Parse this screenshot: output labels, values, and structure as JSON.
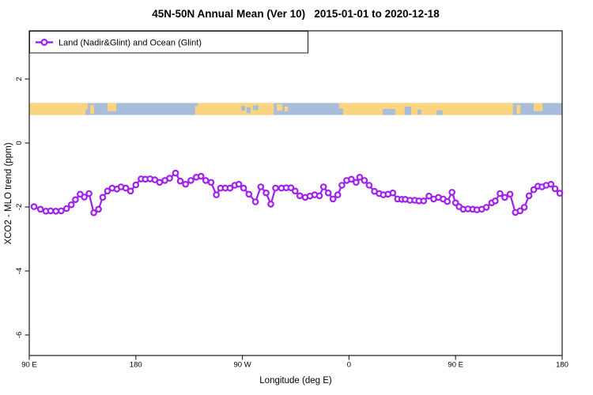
{
  "chart_data": {
    "type": "line",
    "title": "45N-50N Annual Mean (Ver 10)   2015-01-01 to 2020-12-18",
    "xlabel": "Longitude (deg E)",
    "ylabel": "XCO2 - MLO trend (ppm)",
    "xlim": [
      90,
      540
    ],
    "ylim": [
      -6.6,
      3.5
    ],
    "grid": false,
    "background": "#FFFFFF",
    "x_ticks": [
      {
        "lon": 90,
        "label": "90 E"
      },
      {
        "lon": 180,
        "label": "180"
      },
      {
        "lon": 270,
        "label": "90 W"
      },
      {
        "lon": 360,
        "label": "0"
      },
      {
        "lon": 450,
        "label": "90 E"
      },
      {
        "lon": 540,
        "label": "180"
      }
    ],
    "y_ticks": [
      {
        "v": 2,
        "label": "2"
      },
      {
        "v": 0,
        "label": "0"
      },
      {
        "v": -2,
        "label": "-2"
      },
      {
        "v": -4,
        "label": "-4"
      },
      {
        "v": -6,
        "label": "-6"
      }
    ],
    "legend": {
      "label": "Land (Nadir&Glint) and Ocean (Glint)",
      "position": "topleft"
    },
    "series": [
      {
        "name": "Land (Nadir&Glint) and Ocean (Glint)",
        "color": "#A020F0",
        "marker": "open-circle",
        "x": [
          94,
          99.5,
          104,
          108,
          112.5,
          117,
          121.5,
          125.5,
          129,
          133,
          136.5,
          140.5,
          144.5,
          148.5,
          152,
          156,
          160,
          164,
          167.5,
          171.5,
          175.5,
          180,
          184.5,
          188,
          192,
          196,
          200,
          204.5,
          208.5,
          213.5,
          217.5,
          222,
          226.5,
          231,
          235,
          239,
          243.5,
          248,
          251.5,
          255.5,
          259.5,
          263.5,
          267,
          271,
          275.5,
          281,
          285.5,
          290,
          294,
          298,
          303,
          307,
          311,
          314.5,
          318.5,
          323,
          327,
          331,
          335,
          338.5,
          342.5,
          346.5,
          350.5,
          354,
          358,
          362,
          366,
          369,
          373,
          377,
          381.5,
          385.5,
          389,
          393,
          397,
          401,
          404.5,
          407.5,
          411.5,
          415.5,
          419,
          423,
          427.5,
          431.5,
          435.5,
          439.5,
          443,
          447,
          450,
          453,
          456.5,
          460.5,
          464.5,
          468,
          472,
          476,
          480.5,
          483.5,
          487.5,
          491.5,
          496,
          500.5,
          504.5,
          508,
          512,
          516,
          519.5,
          523,
          526.5,
          530.5,
          534,
          538
        ],
        "y": [
          -1.99,
          -2.07,
          -2.13,
          -2.12,
          -2.13,
          -2.12,
          -2.05,
          -1.93,
          -1.77,
          -1.6,
          -1.69,
          -1.58,
          -2.18,
          -2.07,
          -1.7,
          -1.5,
          -1.41,
          -1.44,
          -1.37,
          -1.41,
          -1.5,
          -1.31,
          -1.12,
          -1.13,
          -1.12,
          -1.15,
          -1.23,
          -1.17,
          -1.1,
          -0.94,
          -1.19,
          -1.29,
          -1.17,
          -1.07,
          -1.04,
          -1.17,
          -1.23,
          -1.62,
          -1.41,
          -1.41,
          -1.41,
          -1.32,
          -1.29,
          -1.41,
          -1.6,
          -1.84,
          -1.37,
          -1.56,
          -1.91,
          -1.41,
          -1.41,
          -1.4,
          -1.4,
          -1.5,
          -1.65,
          -1.7,
          -1.66,
          -1.62,
          -1.65,
          -1.37,
          -1.56,
          -1.75,
          -1.62,
          -1.32,
          -1.17,
          -1.13,
          -1.23,
          -1.07,
          -1.17,
          -1.32,
          -1.51,
          -1.58,
          -1.62,
          -1.6,
          -1.56,
          -1.75,
          -1.76,
          -1.76,
          -1.79,
          -1.79,
          -1.81,
          -1.81,
          -1.66,
          -1.75,
          -1.7,
          -1.75,
          -1.83,
          -1.54,
          -1.87,
          -1.99,
          -2.07,
          -2.06,
          -2.07,
          -2.09,
          -2.07,
          -2.01,
          -1.87,
          -1.81,
          -1.58,
          -1.7,
          -1.6,
          -2.17,
          -2.12,
          -2.01,
          -1.65,
          -1.46,
          -1.35,
          -1.37,
          -1.32,
          -1.29,
          -1.43,
          -1.57
        ]
      }
    ],
    "map_strip": {
      "description": "world land/ocean band for 45N-50N drawn across plot at y≈0.9-1.25",
      "land_color": "#FAD47E",
      "ocean_color": "#A9BCD9",
      "value_range": [
        0.875,
        1.25
      ],
      "land": [
        {
          "a": 90,
          "b": 137.5,
          "t0": 0,
          "t1": 1
        },
        {
          "a": 137.5,
          "b": 139.5,
          "t0": 0,
          "t1": 0.55
        },
        {
          "a": 141.5,
          "b": 144.8,
          "t0": 0.15,
          "t1": 0.9
        },
        {
          "a": 156,
          "b": 163.5,
          "t0": 0,
          "t1": 0.68
        },
        {
          "a": 230,
          "b": 232.3,
          "t0": 0.25,
          "t1": 1
        },
        {
          "a": 232.3,
          "b": 296.5,
          "t0": 0,
          "t1": 1
        },
        {
          "a": 299,
          "b": 303.8,
          "t0": 0.1,
          "t1": 0.65
        },
        {
          "a": 305.5,
          "b": 308.5,
          "t0": 0.3,
          "t1": 0.7
        },
        {
          "a": 351.5,
          "b": 355,
          "t0": 0,
          "t1": 0.45
        },
        {
          "a": 355,
          "b": 498.5,
          "t0": 0,
          "t1": 1
        },
        {
          "a": 501.5,
          "b": 504.8,
          "t0": 0.15,
          "t1": 0.9
        },
        {
          "a": 516,
          "b": 523.5,
          "t0": 0,
          "t1": 0.68
        }
      ],
      "ocean_overlays": [
        {
          "a": 269,
          "b": 272.3,
          "t0": 0.25,
          "t1": 0.65
        },
        {
          "a": 273.5,
          "b": 277,
          "t0": 0.35,
          "t1": 0.85
        },
        {
          "a": 279,
          "b": 283.5,
          "t0": 0.2,
          "t1": 0.6
        },
        {
          "a": 388.5,
          "b": 399,
          "t0": 0.5,
          "t1": 1
        },
        {
          "a": 407,
          "b": 412.5,
          "t0": 0.3,
          "t1": 1
        },
        {
          "a": 418,
          "b": 421,
          "t0": 0.55,
          "t1": 0.95
        },
        {
          "a": 434,
          "b": 439,
          "t0": 0.6,
          "t1": 1
        }
      ]
    }
  }
}
